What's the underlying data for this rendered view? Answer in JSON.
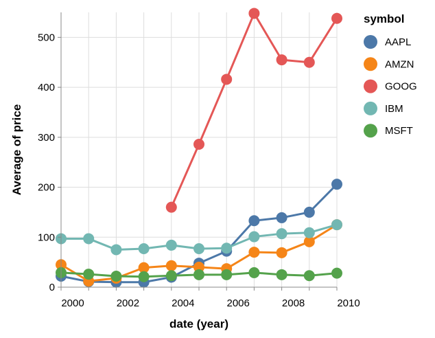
{
  "chart_data": {
    "type": "line",
    "xlabel": "date (year)",
    "ylabel": "Average of price",
    "xlim": [
      2000,
      2010
    ],
    "ylim": [
      0,
      550
    ],
    "x_ticks": [
      "2000",
      "2002",
      "2004",
      "2006",
      "2008",
      "2010"
    ],
    "y_ticks": [
      "0",
      "100",
      "200",
      "300",
      "400",
      "500"
    ],
    "grid": true,
    "legend": {
      "title": "symbol",
      "position": "right"
    },
    "x": [
      2000,
      2001,
      2002,
      2003,
      2004,
      2005,
      2006,
      2007,
      2008,
      2009,
      2010
    ],
    "series": [
      {
        "name": "AAPL",
        "color": "#4c78a8",
        "values": [
          22,
          11,
          10,
          10,
          20,
          48,
          72,
          133,
          139,
          150,
          206
        ]
      },
      {
        "name": "AMZN",
        "color": "#f58518",
        "values": [
          45,
          12,
          18,
          39,
          43,
          40,
          37,
          70,
          69,
          91,
          125
        ]
      },
      {
        "name": "GOOG",
        "color": "#e45756",
        "values": [
          null,
          null,
          null,
          null,
          160,
          286,
          416,
          548,
          455,
          450,
          538
        ]
      },
      {
        "name": "IBM",
        "color": "#72b7b2",
        "values": [
          97,
          97,
          75,
          77,
          84,
          77,
          78,
          101,
          107,
          109,
          125
        ]
      },
      {
        "name": "MSFT",
        "color": "#54a24b",
        "values": [
          29,
          26,
          22,
          21,
          23,
          25,
          25,
          29,
          25,
          23,
          28
        ]
      }
    ]
  }
}
